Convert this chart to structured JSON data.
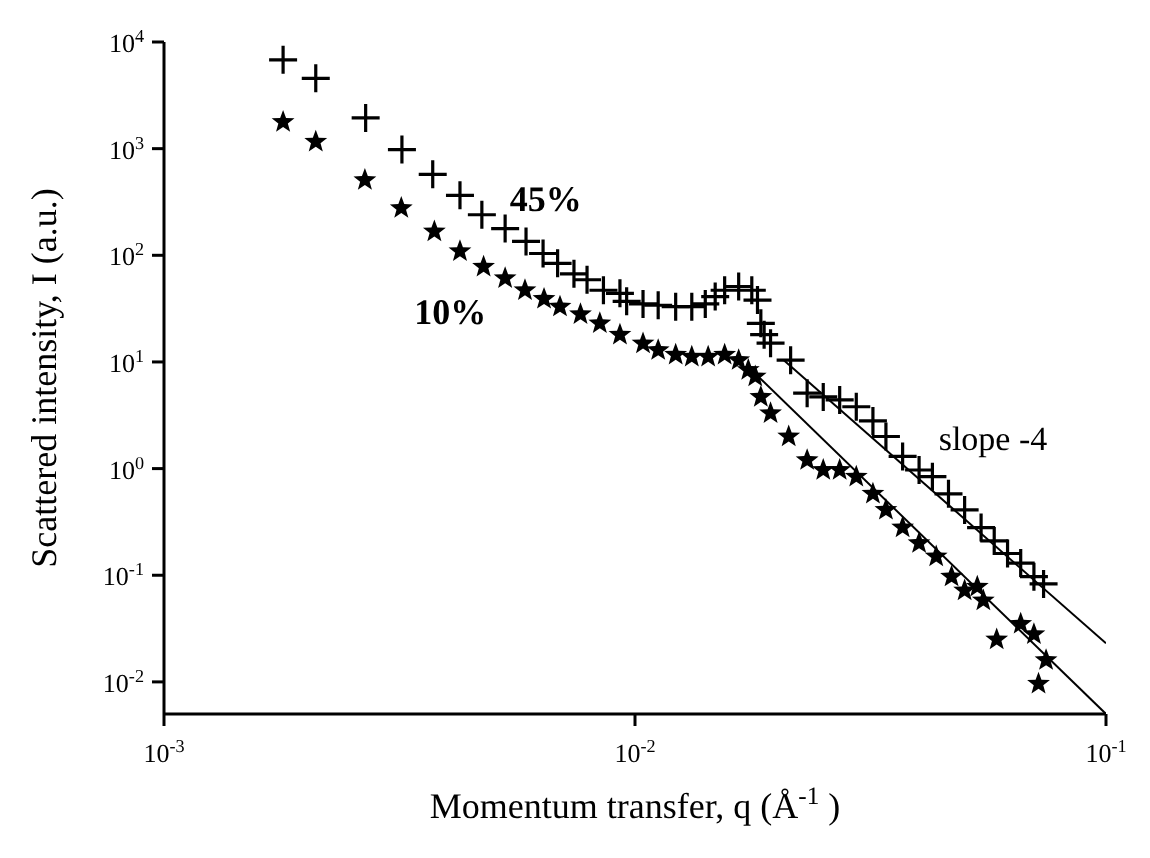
{
  "chart_data": {
    "type": "scatter",
    "xlabel": "Momentum transfer, q (Å$^{-1}$)",
    "ylabel": "Scattered intensity, I (a.u.)",
    "log": "xy",
    "grid": false,
    "legend": false,
    "xlim": [
      0.001,
      0.1
    ],
    "ylim": [
      0.005,
      10000
    ],
    "xticks": [
      {
        "value": 0.001,
        "label": "10$^{-3}$"
      },
      {
        "value": 0.01,
        "label": "10$^{-2}$"
      },
      {
        "value": 0.1,
        "label": "10$^{-1}$"
      }
    ],
    "yticks": [
      {
        "value": 0.01,
        "label": "10$^{-2}$"
      },
      {
        "value": 0.1,
        "label": "10$^{-1}$"
      },
      {
        "value": 1,
        "label": "10$^{0}$"
      },
      {
        "value": 10,
        "label": "10$^{1}$"
      },
      {
        "value": 100,
        "label": "10$^{2}$"
      },
      {
        "value": 1000,
        "label": "10$^{3}$"
      },
      {
        "value": 10000,
        "label": "10$^{4}$"
      }
    ],
    "series": [
      {
        "type": "scatter",
        "name": "45%",
        "marker": "cross",
        "color": "#000000",
        "x": [
          0.00179,
          0.0021,
          0.00268,
          0.0032,
          0.00372,
          0.00425,
          0.00473,
          0.0053,
          0.00587,
          0.00638,
          0.00685,
          0.00742,
          0.00791,
          0.00857,
          0.00929,
          0.0096,
          0.0104,
          0.0112,
          0.0122,
          0.0132,
          0.0141,
          0.0148,
          0.0155,
          0.0166,
          0.0177,
          0.0182,
          0.0185,
          0.0188,
          0.0194,
          0.0214,
          0.0232,
          0.0251,
          0.0272,
          0.0295,
          0.032,
          0.0341,
          0.037,
          0.0401,
          0.0428,
          0.0463,
          0.0501,
          0.0543,
          0.0579,
          0.0618,
          0.0659,
          0.0703,
          0.0737
        ],
        "values": [
          6800,
          4560,
          1940,
          980,
          575,
          365,
          240,
          178,
          135,
          104,
          84,
          67,
          59,
          47,
          44,
          37,
          35,
          34,
          33,
          33,
          35,
          41,
          47,
          51,
          47,
          38,
          23,
          18,
          15,
          10.4,
          5.1,
          4.7,
          4.4,
          3.8,
          2.8,
          2.0,
          1.3,
          0.97,
          0.84,
          0.58,
          0.41,
          0.28,
          0.21,
          0.16,
          0.13,
          0.097,
          0.083
        ]
      },
      {
        "type": "scatter",
        "name": "10%",
        "marker": "star",
        "color": "#000000",
        "x": [
          0.00179,
          0.0021,
          0.00267,
          0.00319,
          0.00375,
          0.00425,
          0.00477,
          0.0053,
          0.00584,
          0.00641,
          0.00693,
          0.00766,
          0.00842,
          0.00929,
          0.0104,
          0.0112,
          0.0122,
          0.0132,
          0.0143,
          0.0155,
          0.0166,
          0.0174,
          0.018,
          0.0185,
          0.0194,
          0.0212,
          0.0232,
          0.0251,
          0.0272,
          0.0295,
          0.032,
          0.0341,
          0.037,
          0.0401,
          0.0436,
          0.047,
          0.0501,
          0.0533,
          0.0549,
          0.0586,
          0.0659,
          0.0703,
          0.0719,
          0.0746
        ],
        "values": [
          1780,
          1160,
          507,
          277,
          167,
          109,
          78,
          61,
          47,
          39,
          33,
          28,
          23,
          18,
          14.9,
          12.9,
          11.7,
          11.2,
          11.2,
          11.7,
          10.4,
          8.4,
          7.3,
          4.7,
          3.3,
          2.0,
          1.2,
          0.97,
          0.97,
          0.84,
          0.58,
          0.41,
          0.28,
          0.2,
          0.15,
          0.097,
          0.072,
          0.078,
          0.058,
          0.025,
          0.035,
          0.028,
          0.0096,
          0.016
        ]
      },
      {
        "type": "line",
        "marker": "none",
        "color": "#000000",
        "x": [
          0.0207,
          0.1
        ],
        "values": [
          10.4,
          0.023
        ]
      },
      {
        "type": "line",
        "marker": "none",
        "color": "#000000",
        "x": [
          0.0174,
          0.1
        ],
        "values": [
          9.0,
          0.005
        ]
      }
    ],
    "annotations": [
      "slope -4"
    ]
  }
}
